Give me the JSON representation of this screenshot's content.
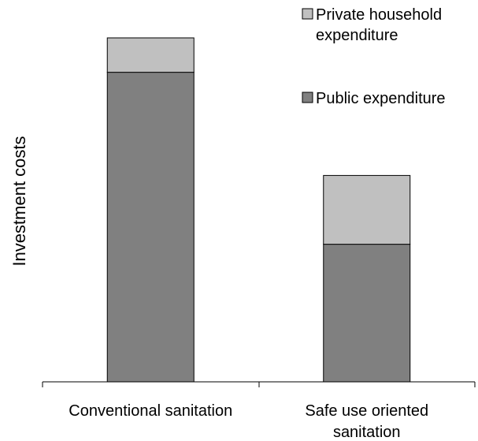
{
  "chart_data": {
    "type": "bar",
    "stacked": true,
    "title": "",
    "xlabel": "",
    "ylabel": "Investment costs",
    "y_ticks_visible": false,
    "y_axis_visible": false,
    "grid": false,
    "ylim": [
      0,
      100
    ],
    "categories": [
      "Conventional sanitation",
      "Safe use oriented sanitation"
    ],
    "series": [
      {
        "name": "Public expendititure",
        "color": "#808080",
        "values": [
          90,
          40
        ]
      },
      {
        "name": "Private household expenditure",
        "color": "#c0c0c0",
        "values": [
          10,
          20
        ]
      }
    ],
    "legend": {
      "placement": "top-right",
      "order": [
        1,
        0
      ],
      "labels": [
        [
          "Private household",
          "expenditure"
        ],
        [
          "Public expenditure"
        ]
      ]
    },
    "category_label_lines": [
      [
        "Conventional sanitation"
      ],
      [
        "Safe use oriented",
        "sanitation"
      ]
    ]
  }
}
